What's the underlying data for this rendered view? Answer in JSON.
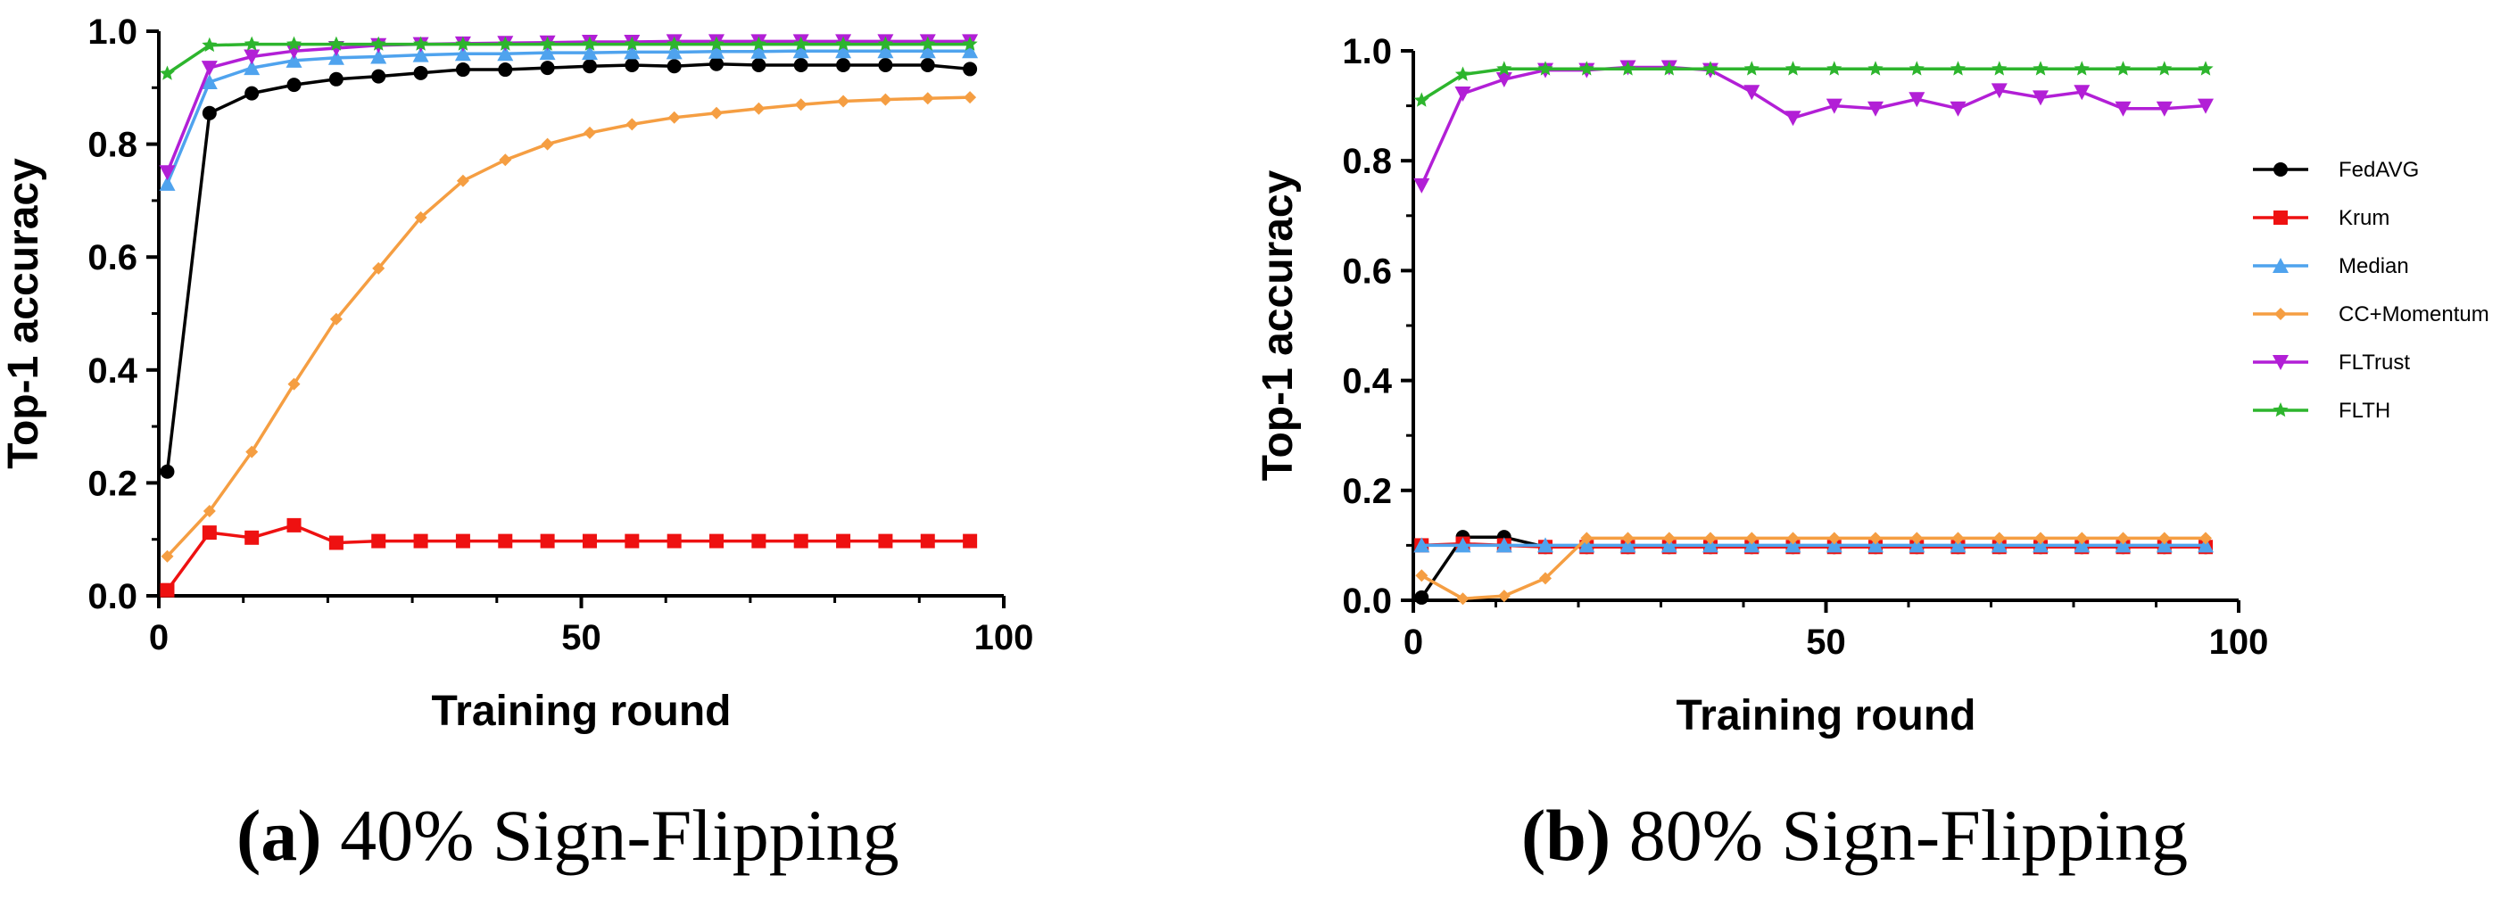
{
  "figure": {
    "captions": [
      {
        "label": "(a)",
        "text": "40% Sign-Flipping"
      },
      {
        "label": "(b)",
        "text": "80% Sign-Flipping"
      }
    ]
  },
  "chart_data": [
    {
      "type": "line",
      "title": "",
      "xlabel": "Training round",
      "ylabel": "Top-1 accuracy",
      "xlim": [
        0,
        100
      ],
      "ylim": [
        0,
        1.0
      ],
      "xticks": [
        "0",
        "50",
        "100"
      ],
      "yticks": [
        "0.0",
        "0.2",
        "0.4",
        "0.6",
        "0.8",
        "1.0"
      ],
      "grid": false,
      "legend": "none",
      "x": [
        1,
        6,
        11,
        16,
        21,
        26,
        31,
        36,
        41,
        46,
        51,
        56,
        61,
        66,
        71,
        76,
        81,
        86,
        91,
        96
      ],
      "series": [
        {
          "name": "FedAVG",
          "color": "#000000",
          "marker": "circle",
          "values": [
            0.22,
            0.855,
            0.89,
            0.905,
            0.915,
            0.92,
            0.926,
            0.932,
            0.932,
            0.935,
            0.938,
            0.94,
            0.938,
            0.942,
            0.94,
            0.94,
            0.94,
            0.94,
            0.94,
            0.933
          ]
        },
        {
          "name": "Krum",
          "color": "#ee1111",
          "marker": "square",
          "values": [
            0.01,
            0.112,
            0.103,
            0.125,
            0.094,
            0.097,
            0.097,
            0.097,
            0.097,
            0.097,
            0.097,
            0.097,
            0.097,
            0.097,
            0.097,
            0.097,
            0.097,
            0.097,
            0.097,
            0.097
          ]
        },
        {
          "name": "Median",
          "color": "#4fa3ee",
          "marker": "triangle-up",
          "values": [
            0.73,
            0.91,
            0.935,
            0.948,
            0.953,
            0.955,
            0.958,
            0.96,
            0.96,
            0.962,
            0.962,
            0.963,
            0.963,
            0.964,
            0.964,
            0.965,
            0.965,
            0.965,
            0.965,
            0.965
          ]
        },
        {
          "name": "CC+Momentum",
          "color": "#f59e42",
          "marker": "diamond",
          "values": [
            0.07,
            0.15,
            0.255,
            0.375,
            0.49,
            0.58,
            0.67,
            0.735,
            0.772,
            0.8,
            0.82,
            0.835,
            0.847,
            0.855,
            0.863,
            0.87,
            0.876,
            0.879,
            0.881,
            0.883
          ]
        },
        {
          "name": "FLTrust",
          "color": "#b21fd6",
          "marker": "triangle-down",
          "values": [
            0.75,
            0.935,
            0.955,
            0.965,
            0.97,
            0.975,
            0.977,
            0.978,
            0.979,
            0.98,
            0.981,
            0.981,
            0.982,
            0.982,
            0.982,
            0.982,
            0.982,
            0.982,
            0.982,
            0.982
          ]
        },
        {
          "name": "FLTH",
          "color": "#2db52d",
          "marker": "star",
          "values": [
            0.925,
            0.975,
            0.977,
            0.977,
            0.977,
            0.977,
            0.977,
            0.977,
            0.977,
            0.977,
            0.977,
            0.977,
            0.977,
            0.977,
            0.977,
            0.977,
            0.977,
            0.977,
            0.977,
            0.977
          ]
        }
      ]
    },
    {
      "type": "line",
      "title": "",
      "xlabel": "Training round",
      "ylabel": "Top-1 accuracy",
      "xlim": [
        0,
        100
      ],
      "ylim": [
        0,
        1.0
      ],
      "xticks": [
        "0",
        "50",
        "100"
      ],
      "yticks": [
        "0.0",
        "0.2",
        "0.4",
        "0.6",
        "0.8",
        "1.0"
      ],
      "grid": false,
      "legend": "right",
      "x": [
        1,
        6,
        11,
        16,
        21,
        26,
        31,
        36,
        41,
        46,
        51,
        56,
        61,
        66,
        71,
        76,
        81,
        86,
        91,
        96
      ],
      "series": [
        {
          "name": "FedAVG",
          "color": "#000000",
          "marker": "circle",
          "values": [
            0.005,
            0.115,
            0.115,
            0.097,
            0.097,
            0.097,
            0.097,
            0.097,
            0.097,
            0.097,
            0.097,
            0.097,
            0.097,
            0.097,
            0.097,
            0.097,
            0.097,
            0.097,
            0.097,
            0.097
          ]
        },
        {
          "name": "Krum",
          "color": "#ee1111",
          "marker": "square",
          "values": [
            0.1,
            0.103,
            0.1,
            0.097,
            0.097,
            0.097,
            0.097,
            0.097,
            0.097,
            0.097,
            0.097,
            0.097,
            0.097,
            0.097,
            0.097,
            0.097,
            0.097,
            0.097,
            0.097,
            0.097
          ]
        },
        {
          "name": "Median",
          "color": "#4fa3ee",
          "marker": "triangle-up",
          "values": [
            0.1,
            0.1,
            0.1,
            0.1,
            0.1,
            0.1,
            0.1,
            0.1,
            0.1,
            0.1,
            0.1,
            0.1,
            0.1,
            0.1,
            0.1,
            0.1,
            0.1,
            0.1,
            0.1,
            0.1
          ]
        },
        {
          "name": "CC+Momentum",
          "color": "#f59e42",
          "marker": "diamond",
          "values": [
            0.045,
            0.003,
            0.008,
            0.04,
            0.113,
            0.113,
            0.113,
            0.113,
            0.113,
            0.113,
            0.113,
            0.113,
            0.113,
            0.113,
            0.113,
            0.113,
            0.113,
            0.113,
            0.113,
            0.113
          ]
        },
        {
          "name": "FLTrust",
          "color": "#b21fd6",
          "marker": "triangle-down",
          "values": [
            0.755,
            0.922,
            0.948,
            0.965,
            0.965,
            0.97,
            0.97,
            0.965,
            0.925,
            0.878,
            0.9,
            0.895,
            0.912,
            0.895,
            0.928,
            0.915,
            0.925,
            0.895,
            0.895,
            0.9
          ]
        },
        {
          "name": "FLTH",
          "color": "#2db52d",
          "marker": "star",
          "values": [
            0.91,
            0.957,
            0.967,
            0.967,
            0.967,
            0.967,
            0.967,
            0.967,
            0.967,
            0.967,
            0.967,
            0.967,
            0.967,
            0.967,
            0.967,
            0.967,
            0.967,
            0.967,
            0.967,
            0.967
          ]
        }
      ]
    }
  ]
}
